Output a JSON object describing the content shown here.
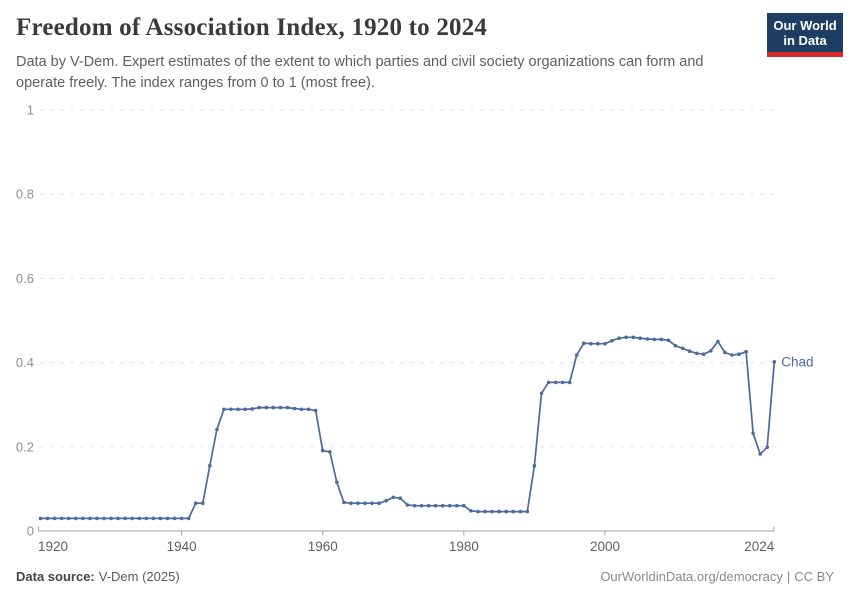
{
  "header": {
    "title": "Freedom of Association Index, 1920 to 2024",
    "subtitle": "Data by V-Dem. Expert estimates of the extent to which parties and civil society organizations can form and operate freely. The index ranges from 0 to 1 (most free).",
    "logo": {
      "line1": "Our World",
      "line2": "in Data"
    }
  },
  "footer": {
    "data_source_label": "Data source:",
    "data_source_value": "V-Dem (2025)",
    "url": "OurWorldinData.org/democracy",
    "separator": "|",
    "license": "CC BY"
  },
  "chart_data": {
    "type": "line",
    "title": "Freedom of Association Index, 1920 to 2024",
    "xlabel": "",
    "ylabel": "",
    "xlim": [
      1920,
      2024
    ],
    "ylim": [
      0,
      1
    ],
    "x_ticks": [
      1920,
      1940,
      1960,
      1980,
      2000,
      2024
    ],
    "y_ticks": [
      0,
      0.2,
      0.4,
      0.6,
      0.8,
      1
    ],
    "grid": "horizontal-dashed",
    "legend_position": "end-of-line-label",
    "colors": {
      "line": "#4c6a9c",
      "gridline": "#e3e3e3",
      "axis": "#a5a5a5",
      "y_label": "#8f8f8f",
      "x_label": "#5f5f5f"
    },
    "series": [
      {
        "name": "Chad",
        "color": "#4c6a9c",
        "x": [
          1920,
          1921,
          1922,
          1923,
          1924,
          1925,
          1926,
          1927,
          1928,
          1929,
          1930,
          1931,
          1932,
          1933,
          1934,
          1935,
          1936,
          1937,
          1938,
          1939,
          1940,
          1941,
          1942,
          1943,
          1944,
          1945,
          1946,
          1947,
          1948,
          1949,
          1950,
          1951,
          1952,
          1953,
          1954,
          1955,
          1956,
          1957,
          1958,
          1959,
          1960,
          1961,
          1962,
          1963,
          1964,
          1965,
          1966,
          1967,
          1968,
          1969,
          1970,
          1971,
          1972,
          1973,
          1974,
          1975,
          1976,
          1977,
          1978,
          1979,
          1980,
          1981,
          1982,
          1983,
          1984,
          1985,
          1986,
          1987,
          1988,
          1989,
          1990,
          1991,
          1992,
          1993,
          1994,
          1995,
          1996,
          1997,
          1998,
          1999,
          2000,
          2001,
          2002,
          2003,
          2004,
          2005,
          2006,
          2007,
          2008,
          2009,
          2010,
          2011,
          2012,
          2013,
          2014,
          2015,
          2016,
          2017,
          2018,
          2019,
          2020,
          2021,
          2022,
          2023,
          2024
        ],
        "values": [
          0.03,
          0.03,
          0.03,
          0.03,
          0.03,
          0.03,
          0.03,
          0.03,
          0.03,
          0.03,
          0.03,
          0.03,
          0.03,
          0.03,
          0.03,
          0.03,
          0.03,
          0.03,
          0.03,
          0.03,
          0.03,
          0.03,
          0.066,
          0.066,
          0.155,
          0.241,
          0.289,
          0.289,
          0.289,
          0.289,
          0.29,
          0.293,
          0.293,
          0.293,
          0.293,
          0.293,
          0.291,
          0.289,
          0.289,
          0.286,
          0.191,
          0.188,
          0.116,
          0.068,
          0.066,
          0.066,
          0.066,
          0.066,
          0.066,
          0.072,
          0.08,
          0.078,
          0.062,
          0.06,
          0.06,
          0.06,
          0.06,
          0.06,
          0.06,
          0.06,
          0.06,
          0.048,
          0.046,
          0.046,
          0.046,
          0.046,
          0.046,
          0.046,
          0.046,
          0.046,
          0.155,
          0.327,
          0.353,
          0.353,
          0.353,
          0.353,
          0.418,
          0.446,
          0.445,
          0.445,
          0.445,
          0.452,
          0.458,
          0.46,
          0.46,
          0.458,
          0.456,
          0.455,
          0.455,
          0.453,
          0.44,
          0.434,
          0.427,
          0.422,
          0.42,
          0.428,
          0.45,
          0.424,
          0.418,
          0.42,
          0.426,
          0.232,
          0.183,
          0.199,
          0.402
        ]
      }
    ]
  }
}
